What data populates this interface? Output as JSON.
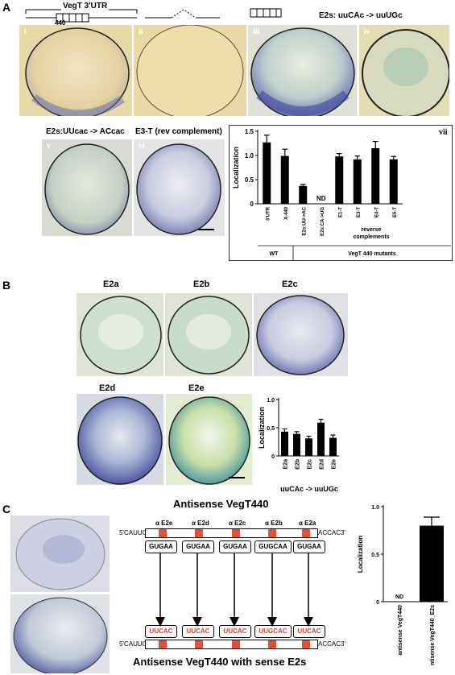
{
  "figure": {
    "panel_A_label": "A",
    "panel_B_label": "B",
    "panel_C_label": "C",
    "a": {
      "utr_label": "VegT 3'UTR",
      "num_440": "440",
      "e2s_mut_label": "E2s: uuCAc -> uuUGc",
      "e2s_mut2_label": "E2s:UUcac -> ACcac",
      "e3t_label": "E3-T (rev complement)",
      "romans": [
        "i",
        "ii",
        "iii",
        "iv",
        "v",
        "vi",
        "vii"
      ]
    },
    "b": {
      "embryos": [
        "E2a",
        "E2b",
        "E2c",
        "E2d",
        "E2e"
      ]
    },
    "c": {
      "title_top": "Antisense VegT440",
      "title_bottom": "Antisense VegT440 with sense E2s",
      "left5": "5'CAUUG",
      "right3": "ACCAC3'",
      "alpha_labels": [
        "α E2e",
        "α E2d",
        "α E2c",
        "α E2b",
        "α E2a"
      ],
      "top_boxes": [
        "GUGAA",
        "GUGAA",
        "GUGAA",
        "GUGCAA",
        "GUGAA"
      ],
      "bottom_boxes": [
        "UUCAC",
        "UUCAC",
        "UUCAC",
        "UUGCAC",
        "UUCAC"
      ]
    }
  },
  "chart_data": [
    {
      "type": "bar",
      "ylabel": "Localization",
      "ylim": [
        0,
        1.5
      ],
      "yticks": [
        "0",
        "0.5",
        "1.0",
        "1.5"
      ],
      "categories": [
        "3'UTR",
        "X-440",
        "E2s:UU->AC",
        "E2s:CA->UG",
        "E1-T",
        "E3-T",
        "E4-T",
        "E5-T"
      ],
      "values": [
        1.27,
        0.99,
        0.37,
        null,
        0.98,
        0.92,
        1.15,
        0.92
      ],
      "errors": [
        0.15,
        0.14,
        0.03,
        null,
        0.06,
        0.07,
        0.14,
        0.06
      ],
      "nd_label": "ND",
      "group_note": "reverse complements",
      "groups": [
        "WT",
        "VegT 440 mutants"
      ]
    },
    {
      "type": "bar",
      "ylabel": "Localization",
      "ylim": [
        0,
        1.0
      ],
      "yticks": [
        "0",
        "0.5",
        "1.0"
      ],
      "categories": [
        "E2a",
        "E2b",
        "E2c",
        "E2d",
        "E2e"
      ],
      "values": [
        0.43,
        0.39,
        0.31,
        0.59,
        0.32
      ],
      "errors": [
        0.05,
        0.04,
        0.04,
        0.06,
        0.05
      ],
      "xlabel": "uuCAc -> uuUGc"
    },
    {
      "type": "bar",
      "ylabel": "Localization",
      "ylim": [
        0,
        1.0
      ],
      "yticks": [
        "0",
        "0.5",
        "1.0"
      ],
      "categories": [
        "antisense VegT440",
        "antisense VegT440_E2s"
      ],
      "values": [
        null,
        0.8
      ],
      "errors": [
        null,
        0.09
      ],
      "nd_label": "ND"
    }
  ]
}
